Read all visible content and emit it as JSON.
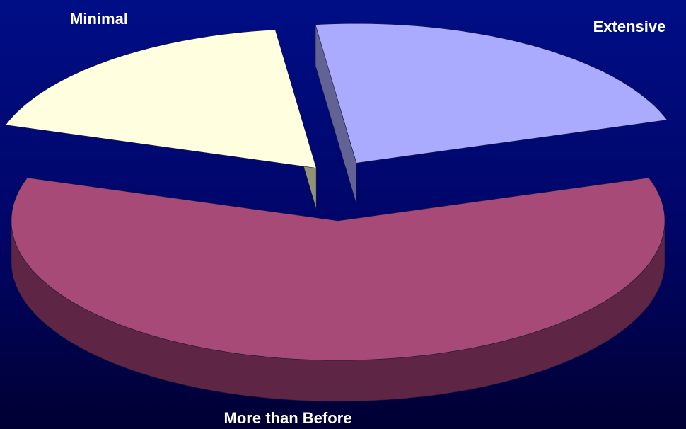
{
  "chart_data": {
    "type": "pie",
    "title": "",
    "slices": [
      {
        "label": "More than Before",
        "value": 60,
        "color": "#a84a78",
        "side_color": "#5e2544",
        "exploded": false
      },
      {
        "label": "Minimal",
        "value": 18,
        "color": "#ffffe0",
        "side_color": "#929277",
        "exploded": true
      },
      {
        "label": "Extensive",
        "value": 22,
        "color": "#aaaaff",
        "side_color": "#626394",
        "exploded": true
      }
    ],
    "legend": "none",
    "style": "3d-exploded"
  }
}
